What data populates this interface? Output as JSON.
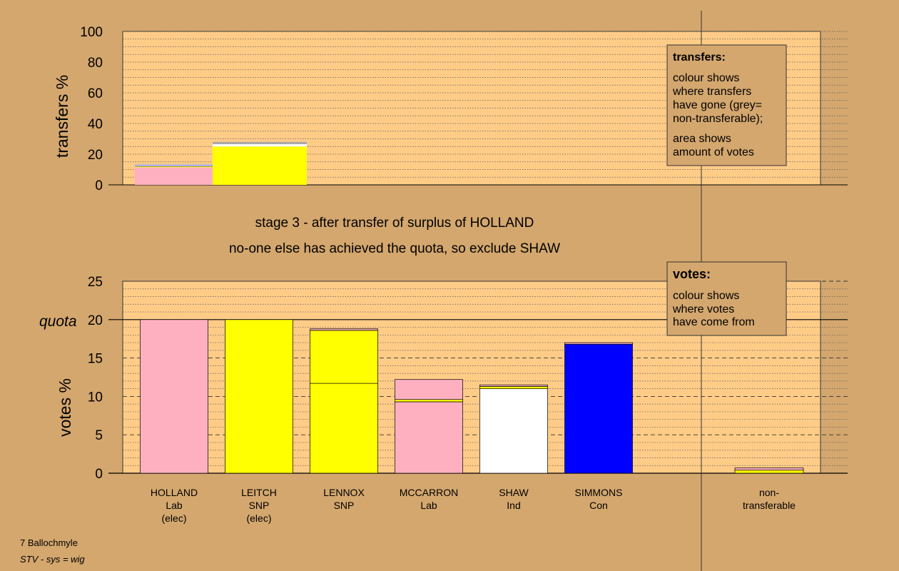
{
  "colors": {
    "background": "#D4A76E",
    "plot_area": "#FFCC88",
    "Lab": "#FFB0C0",
    "SNP": "#FFFF00",
    "Con": "#0000FF",
    "Ind": "#FFFFFF",
    "non_transferable": "#AAAAAA"
  },
  "stage": {
    "line1": "stage 3 - after transfer of surplus of HOLLAND",
    "line2": "no-one else has achieved the quota, so exclude SHAW"
  },
  "footer": {
    "ward": "7 Ballochmyle",
    "system": "STV - sys = wig"
  },
  "legend_transfers": {
    "title": "transfers:",
    "lines_a": [
      "colour shows",
      "where transfers",
      "have gone (grey=",
      "non-transferable);"
    ],
    "lines_b": [
      "area shows",
      "amount of votes"
    ]
  },
  "legend_votes": {
    "title": "votes:",
    "lines": [
      "colour shows",
      "where votes",
      "have come from"
    ]
  },
  "quota_label": "quota",
  "chart_data": [
    {
      "type": "bar",
      "ylabel": "transfers %",
      "ylim": [
        0,
        100
      ],
      "yticks": [
        0,
        20,
        40,
        60,
        80,
        100
      ],
      "grid": "dotted every 5",
      "bars": [
        {
          "label": "HOLLAND",
          "segments": [
            {
              "party": "Lab",
              "value": 11.5
            },
            {
              "party": "SNP",
              "value": 0.6
            },
            {
              "party": "Con",
              "value": 0.4
            },
            {
              "party": "Ind",
              "value": 0.6
            },
            {
              "party": "non_transferable",
              "value": 0.5
            }
          ]
        },
        {
          "label": "non-transferable",
          "segments": [
            {
              "party": "SNP",
              "value": 25
            },
            {
              "party": "Ind",
              "value": 1.5
            },
            {
              "party": "non_transferable",
              "value": 1.5
            }
          ]
        }
      ]
    },
    {
      "type": "bar",
      "ylabel": "votes %",
      "ylim": [
        0,
        25
      ],
      "yticks": [
        0,
        5,
        10,
        15,
        20,
        25
      ],
      "quota": 20,
      "grid": "dashed every 5, dotted every 1",
      "candidates": [
        {
          "name": "HOLLAND",
          "party": "Lab",
          "status": "(elec)",
          "segments": [
            {
              "party": "Lab",
              "value": 20
            }
          ]
        },
        {
          "name": "LEITCH",
          "party": "SNP",
          "status": "(elec)",
          "segments": [
            {
              "party": "SNP",
              "value": 20
            }
          ]
        },
        {
          "name": "LENNOX",
          "party": "SNP",
          "status": "",
          "segments": [
            {
              "party": "SNP",
              "value": 11.7
            },
            {
              "party": "SNP",
              "value": 6.9
            },
            {
              "party": "Lab",
              "value": 0.2
            }
          ]
        },
        {
          "name": "MCCARRON",
          "party": "Lab",
          "status": "",
          "segments": [
            {
              "party": "Lab",
              "value": 9.3
            },
            {
              "party": "SNP",
              "value": 0.3
            },
            {
              "party": "Lab",
              "value": 2.6
            }
          ]
        },
        {
          "name": "SHAW",
          "party": "Ind",
          "status": "",
          "segments": [
            {
              "party": "Ind",
              "value": 11.0
            },
            {
              "party": "SNP",
              "value": 0.3
            },
            {
              "party": "Lab",
              "value": 0.2
            }
          ]
        },
        {
          "name": "SIMMONS",
          "party": "Con",
          "status": "",
          "segments": [
            {
              "party": "Con",
              "value": 16.8
            },
            {
              "party": "Lab",
              "value": 0.2
            }
          ]
        },
        {
          "name": "non-",
          "party": "transferable",
          "status": "",
          "segments": [
            {
              "party": "SNP",
              "value": 0.4
            },
            {
              "party": "Lab",
              "value": 0.3
            }
          ]
        }
      ]
    }
  ]
}
